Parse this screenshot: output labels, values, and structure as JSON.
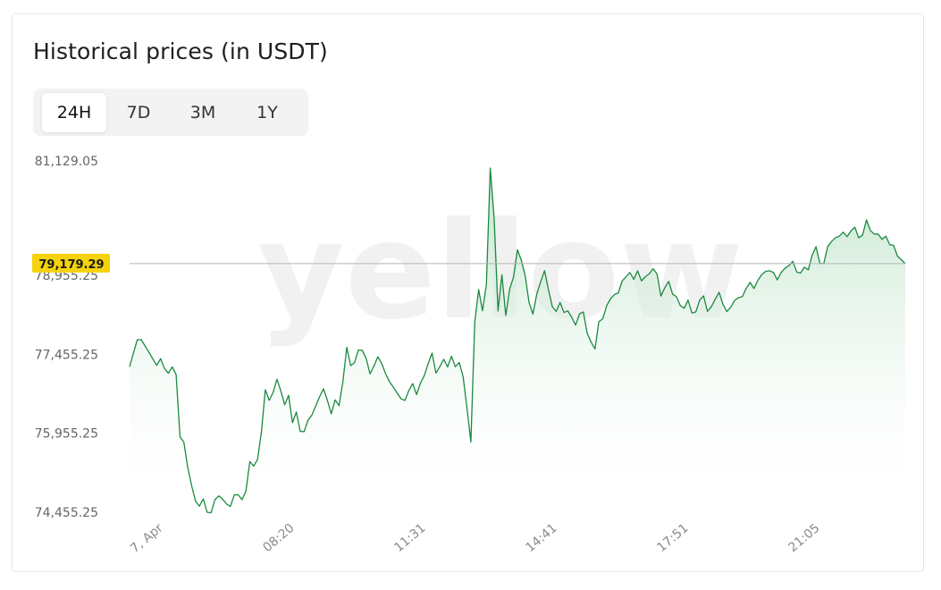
{
  "card": {
    "title": "Historical prices (in USDT)"
  },
  "tabs": [
    {
      "label": "24H",
      "active": true
    },
    {
      "label": "7D",
      "active": false
    },
    {
      "label": "3M",
      "active": false
    },
    {
      "label": "1Y",
      "active": false
    }
  ],
  "watermark": "yellow",
  "colors": {
    "line": "#1a8a3e",
    "fill_top": "#bfe3c9",
    "badge": "#f5d20a",
    "current_line": "#b5b5b5"
  },
  "chart_data": {
    "type": "area",
    "title": "",
    "xlabel": "",
    "ylabel": "",
    "ylim": [
      74455.25,
      81129.05
    ],
    "y_ticks": [
      "81,129.05",
      "78,955.25",
      "77,455.25",
      "75,955.25",
      "74,455.25"
    ],
    "y_tick_values": [
      81129.05,
      78955.25,
      77455.25,
      75955.25,
      74455.25
    ],
    "x_ticks": [
      "7, Apr",
      "08:20",
      "11:31",
      "14:41",
      "17:51",
      "21:05"
    ],
    "current_price_label": "79,179.29",
    "current_price": 79179.29,
    "series": [
      {
        "values": [
          77217,
          77482,
          77733,
          77733,
          77613,
          77494,
          77367,
          77245,
          77372,
          77186,
          77097,
          77216,
          77069,
          75890,
          75784,
          75303,
          74963,
          74668,
          74570,
          74708,
          74455,
          74444,
          74693,
          74766,
          74703,
          74612,
          74567,
          74783,
          74788,
          74693,
          74854,
          75418,
          75332,
          75458,
          75984,
          76783,
          76580,
          76729,
          76982,
          76759,
          76498,
          76678,
          76158,
          76360,
          75991,
          75986,
          76201,
          76300,
          76474,
          76650,
          76800,
          76580,
          76327,
          76590,
          76480,
          76936,
          77587,
          77240,
          77298,
          77537,
          77530,
          77375,
          77083,
          77230,
          77409,
          77282,
          77090,
          76936,
          76830,
          76718,
          76609,
          76580,
          76766,
          76900,
          76690,
          76909,
          77052,
          77283,
          77478,
          77099,
          77222,
          77361,
          77216,
          77419,
          77219,
          77300,
          77030,
          76430,
          75789,
          78063,
          78685,
          78283,
          78780,
          80993,
          80039,
          78277,
          78966,
          78192,
          78693,
          78924,
          79441,
          79245,
          78950,
          78440,
          78219,
          78603,
          78835,
          79045,
          78684,
          78360,
          78270,
          78440,
          78250,
          78280,
          78159,
          78010,
          78223,
          78260,
          77854,
          77687,
          77557,
          78075,
          78130,
          78375,
          78510,
          78590,
          78620,
          78847,
          78930,
          79010,
          78880,
          79040,
          78850,
          78930,
          78985,
          79080,
          78980,
          78560,
          78720,
          78840,
          78600,
          78550,
          78380,
          78330,
          78485,
          78240,
          78260,
          78485,
          78565,
          78270,
          78360,
          78502,
          78633,
          78405,
          78267,
          78350,
          78480,
          78530,
          78550,
          78710,
          78822,
          78705,
          78860,
          78970,
          79030,
          79043,
          79010,
          78870,
          79010,
          79090,
          79140,
          79222,
          79020,
          79000,
          79110,
          79060,
          79340,
          79500,
          79180,
          79180,
          79500,
          79600,
          79670,
          79700,
          79776,
          79690,
          79800,
          79870,
          79670,
          79720,
          80010,
          79808,
          79740,
          79740,
          79640,
          79700,
          79539,
          79524,
          79320,
          79250,
          79179
        ]
      }
    ]
  }
}
